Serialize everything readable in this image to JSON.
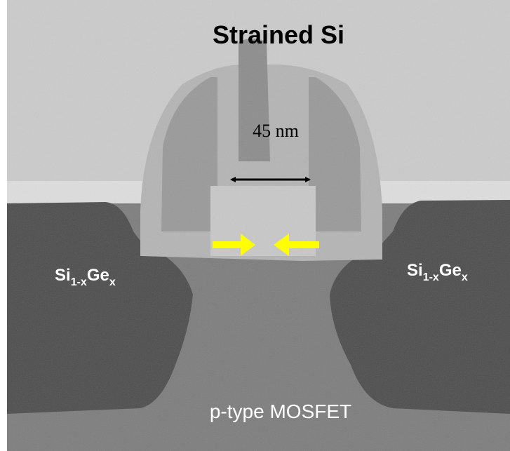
{
  "title": "Strained Si",
  "gate_length": "45 nm",
  "left_region": {
    "base1": "Si",
    "sub1": "1-x",
    "base2": "Ge",
    "sub2": "x"
  },
  "right_region": {
    "base1": "Si",
    "sub1": "1-x",
    "base2": "Ge",
    "sub2": "x"
  },
  "device": "p-type MOSFET"
}
